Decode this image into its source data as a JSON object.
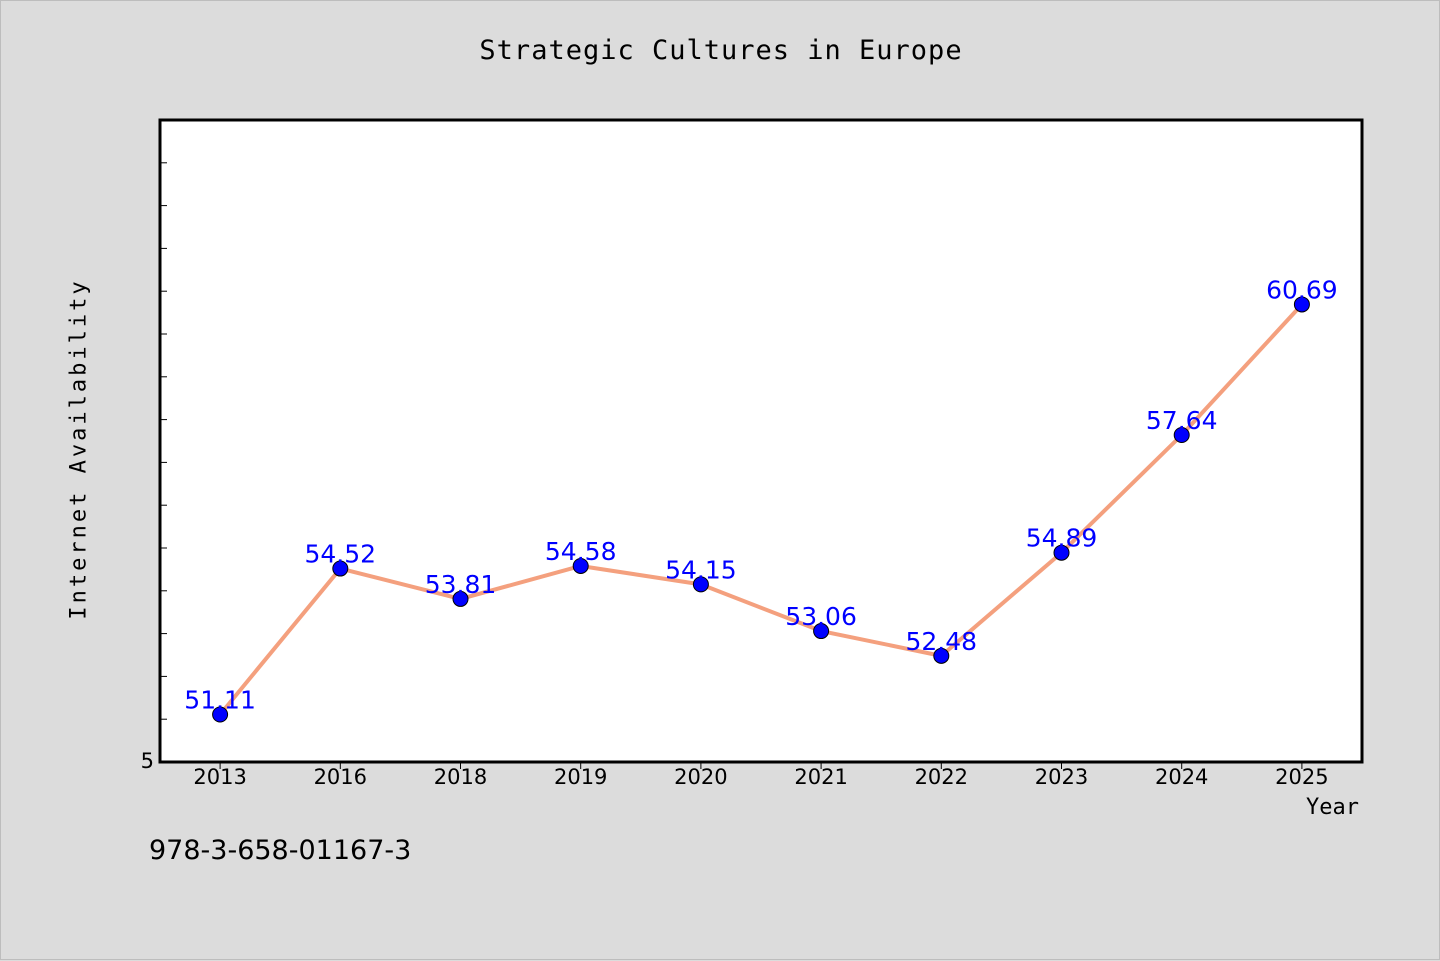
{
  "colors": {
    "background": "#dcdcdc",
    "plot_background": "#ffffff",
    "line": "#f4a07e",
    "marker": "#0000ff",
    "data_label": "#0000ff"
  },
  "footer": {
    "isbn": "978-3-658-01167-3"
  },
  "chart_data": {
    "type": "line",
    "title": "Strategic Cultures in Europe",
    "xlabel": "Year",
    "ylabel": "Internet Availability",
    "categories": [
      "2013",
      "2016",
      "2018",
      "2019",
      "2020",
      "2021",
      "2022",
      "2023",
      "2024",
      "2025"
    ],
    "series": [
      {
        "values": [
          51.11,
          54.52,
          53.81,
          54.58,
          54.15,
          53.06,
          52.48,
          54.89,
          57.64,
          60.69
        ],
        "labels": [
          "51.11",
          "54.52",
          "53.81",
          "54.58",
          "54.15",
          "53.06",
          "52.48",
          "54.89",
          "57.64",
          "60.69"
        ]
      }
    ],
    "ylim": [
      50,
      65
    ],
    "y_tick_labels": [
      "5"
    ],
    "grid": false,
    "legend": "none"
  }
}
